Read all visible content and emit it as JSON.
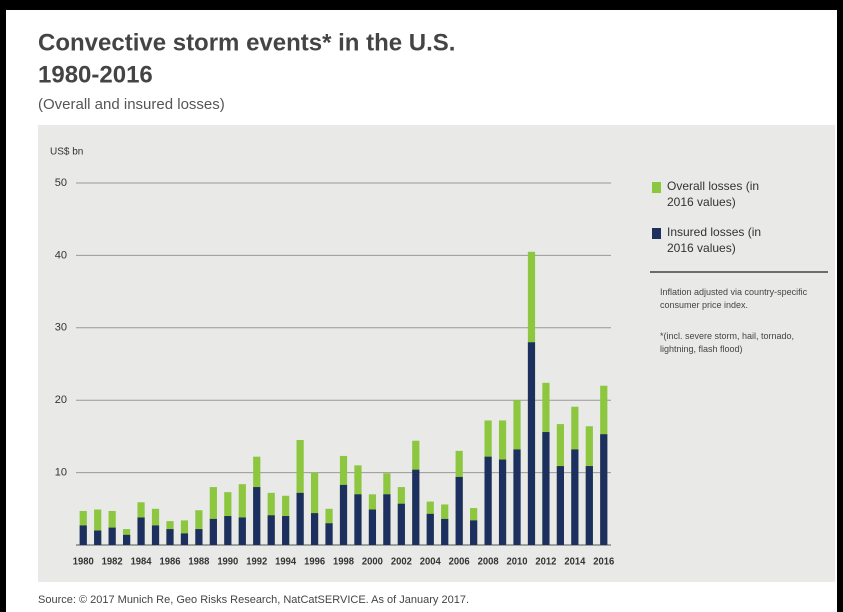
{
  "chart_data": {
    "type": "bar",
    "title": "Convective storm events* in the U.S.",
    "title_line2": "1980-2016",
    "subtitle": "(Overall and insured losses)",
    "y_label": "US$ bn",
    "categories": [
      "1980",
      null,
      "1982",
      null,
      "1984",
      null,
      "1986",
      null,
      "1988",
      null,
      "1990",
      null,
      "1992",
      null,
      "1994",
      null,
      "1996",
      null,
      "1998",
      null,
      "2000",
      null,
      "2002",
      null,
      "2004",
      null,
      "2006",
      null,
      "2008",
      null,
      "2010",
      null,
      "2012",
      null,
      "2014",
      null,
      "2016"
    ],
    "series": [
      {
        "name": "Overall losses (in 2016 values)",
        "color": "#8dc63f",
        "values": [
          4.7,
          4.9,
          4.7,
          2.2,
          5.9,
          5.0,
          3.3,
          3.4,
          4.8,
          8.0,
          7.3,
          8.4,
          12.2,
          7.2,
          6.8,
          14.5,
          10.0,
          5.0,
          12.3,
          11.0,
          7.0,
          9.9,
          8.0,
          14.4,
          6.0,
          5.6,
          13.0,
          5.1,
          17.2,
          17.2,
          20.0,
          40.5,
          22.4,
          16.7,
          19.1,
          16.4,
          22.0
        ]
      },
      {
        "name": "Insured losses (in 2016 values)",
        "color": "#1c2f5e",
        "values": [
          2.7,
          2.0,
          2.4,
          1.4,
          3.8,
          2.7,
          2.2,
          1.6,
          2.2,
          3.6,
          4.0,
          3.8,
          8.0,
          4.1,
          4.0,
          7.2,
          4.4,
          3.0,
          8.3,
          7.0,
          4.9,
          7.0,
          5.7,
          10.4,
          4.3,
          3.6,
          9.4,
          3.4,
          12.2,
          11.8,
          13.2,
          28.0,
          15.6,
          10.9,
          13.2,
          10.9,
          15.3
        ]
      }
    ],
    "ylim": [
      0,
      50
    ],
    "yticks": [
      10,
      20,
      30,
      40,
      50
    ],
    "grid": true,
    "notes": [
      "Inflation adjusted via country-specific consumer price index.",
      "*(incl. severe storm, hail, tornado, lightning, flash flood)"
    ],
    "source": "Source: © 2017 Munich Re, Geo Risks Research, NatCatSERVICE. As of January 2017."
  }
}
